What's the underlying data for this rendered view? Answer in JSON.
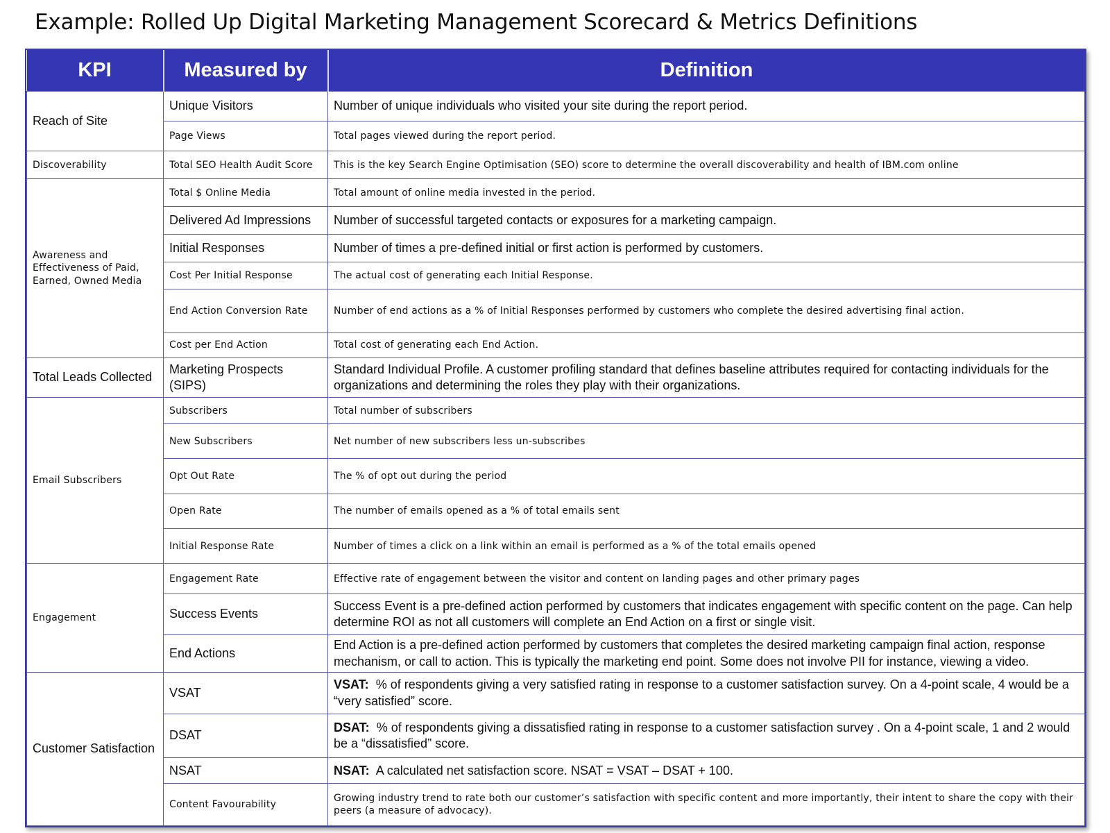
{
  "title": "Example: Rolled Up Digital Marketing Management Scorecard & Metrics Definitions",
  "columns": [
    "KPI",
    "Measured by",
    "Definition"
  ],
  "groups": [
    {
      "kpi": "Reach of Site",
      "rows": [
        {
          "measure": "Unique Visitors",
          "definition": "Number of unique individuals who visited your site during the report period."
        },
        {
          "measure": "Page Views",
          "definition": "Total pages viewed during the report period."
        }
      ]
    },
    {
      "kpi": "Discoverability",
      "rows": [
        {
          "measure": "Total SEO Health Audit Score",
          "definition": "This is the key Search Engine Optimisation (SEO) score to determine the overall discoverability and health of IBM.com online"
        }
      ]
    },
    {
      "kpi": "Awareness and Effectiveness of Paid, Earned, Owned Media",
      "rows": [
        {
          "measure": "Total $ Online Media",
          "definition": "Total amount of online media invested in the period."
        },
        {
          "measure": "Delivered Ad Impressions",
          "definition": "Number of successful targeted contacts or exposures for a marketing campaign."
        },
        {
          "measure": "Initial Responses",
          "definition": "Number of times a pre-defined initial or first action is performed by customers."
        },
        {
          "measure": "Cost Per Initial Response",
          "definition": "The actual cost of generating each Initial Response."
        },
        {
          "measure": "End Action Conversion Rate",
          "definition": "Number of end actions as a % of Initial Responses performed by customers who complete the desired advertising final action."
        },
        {
          "measure": "Cost per End Action",
          "definition": "Total cost of generating each End Action."
        }
      ]
    },
    {
      "kpi": "Total Leads Collected",
      "rows": [
        {
          "measure": "Marketing Prospects (SIPS)",
          "definition": "Standard Individual Profile.  A customer profiling standard that defines baseline attributes required for contacting individuals for the organizations and determining the roles they play with their organizations."
        }
      ]
    },
    {
      "kpi": "Email Subscribers",
      "rows": [
        {
          "measure": "Subscribers",
          "definition": "Total number of subscribers"
        },
        {
          "measure": "New Subscribers",
          "definition": "Net number of new subscribers less un-subscribes"
        },
        {
          "measure": "Opt Out Rate",
          "definition": "The % of opt out during the period"
        },
        {
          "measure": "Open Rate",
          "definition": "The number of emails opened as a % of total emails sent"
        },
        {
          "measure": "Initial Response Rate",
          "definition": "Number of times a click on a link within an email is performed as a % of the total emails opened"
        }
      ]
    },
    {
      "kpi": "Engagement",
      "rows": [
        {
          "measure": "Engagement Rate",
          "definition": "Effective rate of engagement between the visitor and content on landing pages and other primary pages"
        },
        {
          "measure": "Success Events",
          "definition": "Success Event is a pre-defined action performed by customers that indicates engagement with specific content on the page. Can help determine ROI as not all customers will complete an End Action on a first or single visit."
        },
        {
          "measure": "End Actions",
          "definition": "End Action is a pre-defined action performed by customers that completes the desired marketing campaign final action, response mechanism, or call to action. This is typically the marketing end point. Some does not involve PII for instance, viewing a video."
        }
      ]
    },
    {
      "kpi": "Customer Satisfaction",
      "rows": [
        {
          "measure": "VSAT",
          "term": "VSAT:",
          "definition": "% of respondents giving a very satisfied rating in response to a customer satisfaction survey.  On a 4-point scale, 4 would be a “very satisfied” score."
        },
        {
          "measure": "DSAT",
          "term": "DSAT:",
          "definition": "% of respondents giving a dissatisfied rating in response to a customer satisfaction survey .  On a 4-point scale, 1 and 2 would be a “dissatisfied” score."
        },
        {
          "measure": "NSAT",
          "term": "NSAT:",
          "definition": "A calculated net satisfaction score.  NSAT = VSAT – DSAT + 100."
        },
        {
          "measure": "Content Favourability",
          "definition": "Growing industry trend to rate both our customer’s satisfaction with specific content and more importantly, their intent to share the copy with their peers (a measure of advocacy)."
        }
      ]
    }
  ]
}
